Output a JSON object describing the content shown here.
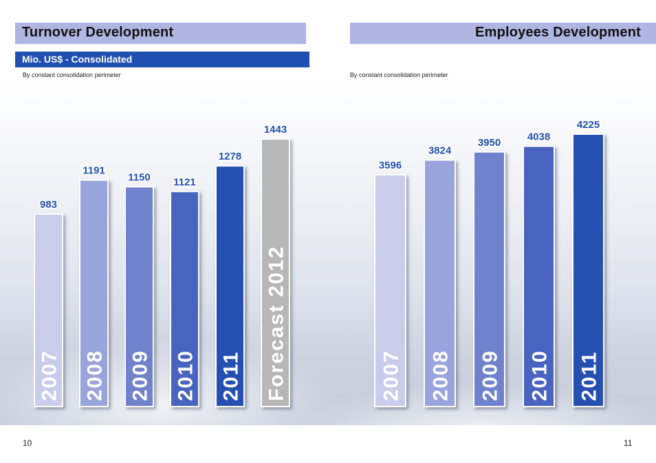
{
  "left": {
    "title": "Turnover Development",
    "subtitle": "Mio. US$ - Consolidated",
    "note": "By constant consolidation perimeter",
    "page_number": "10"
  },
  "right": {
    "title": "Employees Development",
    "note": "By constant consolidation perimeter",
    "page_number": "11"
  },
  "colors": {
    "title_bar": "#b1b5e2",
    "subtitle_bar": "#1f4fb0",
    "value_label": "#1f4fb0"
  },
  "chart_data": [
    {
      "type": "bar",
      "title": "Turnover Development",
      "subtitle": "Mio. US$ - Consolidated",
      "categories": [
        "2007",
        "2008",
        "2009",
        "2010",
        "2011",
        "Forecast 2012"
      ],
      "values": [
        983,
        1191,
        1150,
        1121,
        1278,
        1443
      ],
      "bar_colors": [
        "#c9cdea",
        "#9aa4dc",
        "#6f82cc",
        "#4a63c0",
        "#2650b2",
        "#b7b7b7"
      ],
      "ylim": [
        0,
        1443
      ],
      "grid": false,
      "legend": "none"
    },
    {
      "type": "bar",
      "title": "Employees Development",
      "categories": [
        "2007",
        "2008",
        "2009",
        "2010",
        "2011"
      ],
      "values": [
        3596,
        3824,
        3950,
        4038,
        4225
      ],
      "bar_colors": [
        "#c9cdea",
        "#9aa4dc",
        "#6f82cc",
        "#4a63c0",
        "#2650b2"
      ],
      "ylim": [
        0,
        4225
      ],
      "grid": false,
      "legend": "none"
    }
  ]
}
